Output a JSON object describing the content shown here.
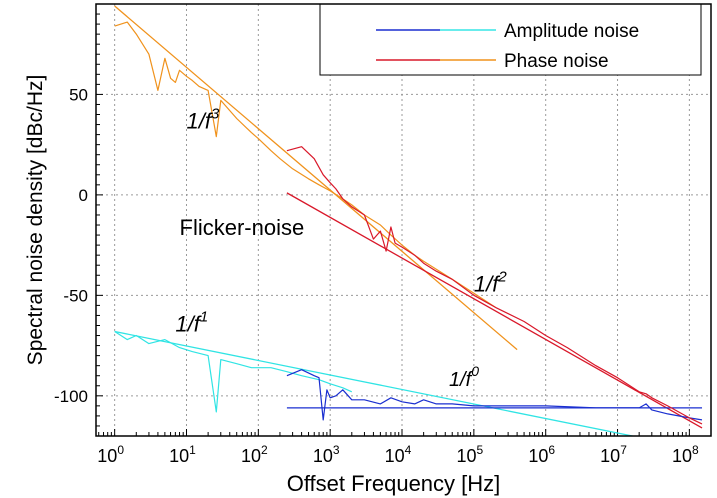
{
  "chart_data": {
    "type": "line",
    "xlabel": "Offset Frequency [Hz]",
    "ylabel": "Spectral noise density [dBc/Hz]",
    "x_scale": "log",
    "xlim": [
      0.55,
      200000000
    ],
    "ylim": [
      -120,
      95
    ],
    "grid": true,
    "legend_position": "top-right",
    "x_ticks": [
      {
        "value": 1,
        "base": "10",
        "exp": "0"
      },
      {
        "value": 10,
        "base": "10",
        "exp": "1"
      },
      {
        "value": 100,
        "base": "10",
        "exp": "2"
      },
      {
        "value": 1000,
        "base": "10",
        "exp": "3"
      },
      {
        "value": 10000,
        "base": "10",
        "exp": "4"
      },
      {
        "value": 100000,
        "base": "10",
        "exp": "5"
      },
      {
        "value": 1000000,
        "base": "10",
        "exp": "6"
      },
      {
        "value": 10000000,
        "base": "10",
        "exp": "7"
      },
      {
        "value": 100000000,
        "base": "10",
        "exp": "8"
      }
    ],
    "y_ticks": [
      {
        "value": 50,
        "label": "50"
      },
      {
        "value": 0,
        "label": "0"
      },
      {
        "value": -50,
        "label": "-50"
      },
      {
        "value": -100,
        "label": "-100"
      }
    ],
    "legend": [
      {
        "label": "Amplitude noise",
        "colors": [
          "#1a2fd0",
          "#36e6e6"
        ]
      },
      {
        "label": "Phase noise",
        "colors": [
          "#d9182a",
          "#f0921c"
        ]
      }
    ],
    "series": [
      {
        "name": "Amplitude noise",
        "segments": [
          {
            "color": "#30e4e4",
            "points": [
              [
                1,
                -68
              ],
              [
                1.5,
                -72
              ],
              [
                2,
                -70
              ],
              [
                3,
                -74
              ],
              [
                5,
                -72
              ],
              [
                8,
                -76
              ],
              [
                12,
                -78
              ],
              [
                20,
                -80
              ],
              [
                26,
                -108
              ],
              [
                30,
                -82
              ],
              [
                50,
                -84
              ],
              [
                80,
                -86
              ],
              [
                150,
                -86
              ],
              [
                250,
                -88
              ],
              [
                400,
                -90
              ],
              [
                700,
                -92
              ],
              [
                1000,
                -94
              ],
              [
                1500,
                -96
              ],
              [
                2000,
                -98
              ]
            ]
          },
          {
            "color": "#1a2fd0",
            "points": [
              [
                250,
                -90
              ],
              [
                400,
                -87
              ],
              [
                600,
                -90
              ],
              [
                700,
                -91
              ],
              [
                800,
                -112
              ],
              [
                900,
                -97
              ],
              [
                1000,
                -101
              ],
              [
                1200,
                -100
              ],
              [
                1500,
                -97
              ],
              [
                2000,
                -102
              ],
              [
                3000,
                -102
              ],
              [
                5000,
                -104
              ],
              [
                7000,
                -101
              ],
              [
                10000,
                -103
              ],
              [
                15000,
                -104
              ],
              [
                20000,
                -102
              ],
              [
                30000,
                -104
              ],
              [
                50000,
                -104
              ],
              [
                100000,
                -105
              ],
              [
                300000,
                -105
              ],
              [
                1000000,
                -105
              ],
              [
                5000000,
                -106
              ],
              [
                10000000,
                -106
              ],
              [
                20000000,
                -106
              ],
              [
                25000000,
                -104
              ],
              [
                30000000,
                -107
              ],
              [
                50000000,
                -109
              ],
              [
                100000000,
                -111
              ],
              [
                150000000,
                -112
              ]
            ]
          }
        ]
      },
      {
        "name": "Phase noise",
        "segments": [
          {
            "color": "#f0921c",
            "points": [
              [
                1,
                84
              ],
              [
                1.5,
                86
              ],
              [
                2,
                80
              ],
              [
                3,
                70
              ],
              [
                4,
                52
              ],
              [
                5,
                68
              ],
              [
                6,
                58
              ],
              [
                7,
                56
              ],
              [
                8,
                62
              ],
              [
                10,
                59
              ],
              [
                12,
                57
              ],
              [
                15,
                54
              ],
              [
                20,
                52
              ],
              [
                26,
                29
              ],
              [
                30,
                47
              ],
              [
                50,
                38
              ],
              [
                80,
                31
              ],
              [
                100,
                28
              ],
              [
                150,
                22
              ],
              [
                200,
                18
              ],
              [
                300,
                13
              ],
              [
                500,
                8
              ],
              [
                700,
                5
              ],
              [
                1000,
                2
              ],
              [
                1500,
                -2
              ],
              [
                2000,
                -5
              ],
              [
                3000,
                -10
              ],
              [
                5000,
                -15
              ],
              [
                7000,
                -20
              ],
              [
                10000,
                -25
              ],
              [
                15000,
                -30
              ],
              [
                20000,
                -33
              ],
              [
                30000,
                -37
              ],
              [
                50000,
                -42
              ],
              [
                100000,
                -49
              ],
              [
                200000,
                -56
              ]
            ]
          },
          {
            "color": "#d9182a",
            "points": [
              [
                250,
                22
              ],
              [
                400,
                24
              ],
              [
                600,
                18
              ],
              [
                800,
                10
              ],
              [
                1000,
                6
              ],
              [
                1200,
                3
              ],
              [
                1500,
                -2
              ],
              [
                2000,
                -6
              ],
              [
                3000,
                -10
              ],
              [
                4000,
                -22
              ],
              [
                5000,
                -18
              ],
              [
                6000,
                -28
              ],
              [
                7000,
                -16
              ],
              [
                8000,
                -24
              ],
              [
                10000,
                -26
              ],
              [
                15000,
                -30
              ],
              [
                20000,
                -34
              ],
              [
                30000,
                -38
              ],
              [
                50000,
                -42
              ],
              [
                100000,
                -50
              ],
              [
                200000,
                -56
              ],
              [
                500000,
                -63
              ],
              [
                1000000,
                -70
              ],
              [
                2000000,
                -76
              ],
              [
                5000000,
                -85
              ],
              [
                10000000,
                -91
              ],
              [
                20000000,
                -98
              ],
              [
                25000000,
                -99
              ],
              [
                30000000,
                -101
              ],
              [
                50000000,
                -105
              ],
              [
                100000000,
                -111
              ],
              [
                150000000,
                -114
              ]
            ]
          }
        ]
      }
    ],
    "fit_lines": [
      {
        "label": "1/f^3",
        "color": "#f0921c",
        "points": [
          [
            1,
            94
          ],
          [
            400000,
            -77
          ]
        ]
      },
      {
        "label": "1/f^2",
        "color": "#d9182a",
        "points": [
          [
            250,
            1
          ],
          [
            150000000,
            -116
          ]
        ]
      },
      {
        "label": "1/f^1",
        "color": "#30e4e4",
        "points": [
          [
            1,
            -68
          ],
          [
            150000000,
            -127
          ]
        ]
      },
      {
        "label": "1/f^0",
        "color": "#1a2fd0",
        "points": [
          [
            250,
            -106
          ],
          [
            150000000,
            -106
          ]
        ]
      }
    ],
    "annotations": [
      {
        "text": "Flicker-noise",
        "x": 8,
        "y": -20,
        "size": 22,
        "italic": false
      },
      {
        "base": "1/f",
        "sup": "3",
        "x": 10,
        "y": 33,
        "size": 22
      },
      {
        "base": "1/f",
        "sup": "2",
        "x": 100000,
        "y": -48,
        "size": 22
      },
      {
        "base": "1/f",
        "sup": "1",
        "x": 7,
        "y": -68,
        "size": 22
      },
      {
        "base": "1/f",
        "sup": "0",
        "x": 45000,
        "y": -95,
        "size": 20
      }
    ]
  }
}
